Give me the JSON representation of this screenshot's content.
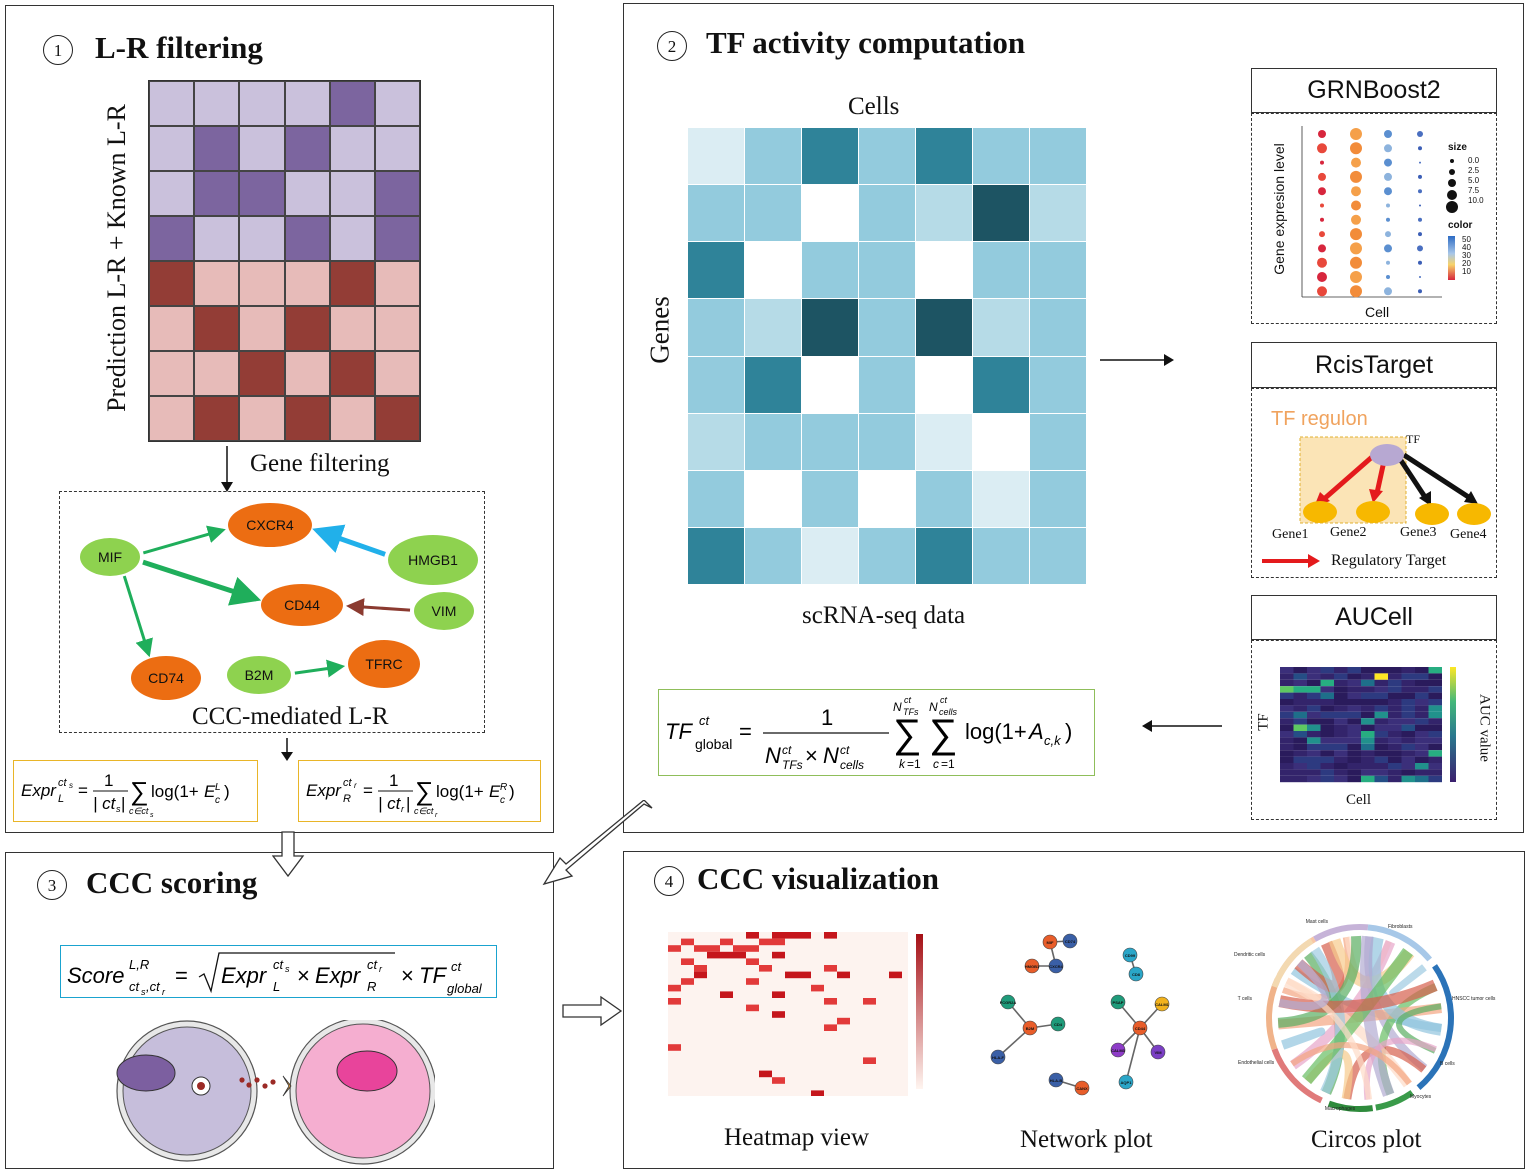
{
  "panel1": {
    "number": "1",
    "title": "L-R filtering",
    "ylabel": "Prediction L-R + Known L-R",
    "gene_filtering": "Gene filtering",
    "ccc_label": "CCC-mediated L-R",
    "heatmap": {
      "rows": 8,
      "cols": 6,
      "pattern": [
        [
          0,
          0,
          0,
          0,
          1,
          0
        ],
        [
          0,
          1,
          0,
          1,
          0,
          0
        ],
        [
          0,
          1,
          1,
          0,
          0,
          1
        ],
        [
          1,
          0,
          0,
          1,
          0,
          1
        ],
        [
          3,
          2,
          2,
          2,
          3,
          2
        ],
        [
          2,
          3,
          2,
          3,
          2,
          2
        ],
        [
          2,
          2,
          3,
          2,
          3,
          2
        ],
        [
          2,
          3,
          2,
          3,
          2,
          3
        ]
      ],
      "colors": [
        "#cac1dc",
        "#7c659f",
        "#e7bbb9",
        "#933d36"
      ]
    },
    "network": {
      "nodes": [
        {
          "id": "MIF",
          "label": "MIF",
          "type": "ligand"
        },
        {
          "id": "CXCR4",
          "label": "CXCR4",
          "type": "receptor"
        },
        {
          "id": "HMGB1",
          "label": "HMGB1",
          "type": "ligand"
        },
        {
          "id": "CD44",
          "label": "CD44",
          "type": "receptor"
        },
        {
          "id": "VIM",
          "label": "VIM",
          "type": "ligand"
        },
        {
          "id": "CD74",
          "label": "CD74",
          "type": "receptor"
        },
        {
          "id": "B2M",
          "label": "B2M",
          "type": "ligand"
        },
        {
          "id": "TFRC",
          "label": "TFRC",
          "type": "receptor"
        }
      ],
      "edges": [
        {
          "from": "MIF",
          "to": "CXCR4",
          "color": "#1fae5b"
        },
        {
          "from": "MIF",
          "to": "CD44",
          "color": "#1fae5b"
        },
        {
          "from": "MIF",
          "to": "CD74",
          "color": "#1fae5b"
        },
        {
          "from": "HMGB1",
          "to": "CXCR4",
          "color": "#21b0ea"
        },
        {
          "from": "VIM",
          "to": "CD44",
          "color": "#8b3a30"
        },
        {
          "from": "B2M",
          "to": "TFRC",
          "color": "#1fae5b"
        }
      ],
      "ligand_color": "#8ed24f",
      "receptor_color": "#ec6d12"
    }
  },
  "panel2": {
    "number": "2",
    "title": "TF activity computation",
    "cells_label": "Cells",
    "genes_label": "Genes",
    "caption": "scRNA-seq data",
    "heatmap": {
      "rows": 8,
      "cols": 7,
      "values": [
        [
          1,
          3,
          6,
          3,
          6,
          3,
          3
        ],
        [
          3,
          3,
          0,
          3,
          2,
          8,
          2
        ],
        [
          6,
          0,
          3,
          3,
          0,
          3,
          3
        ],
        [
          3,
          2,
          8,
          3,
          8,
          2,
          3
        ],
        [
          3,
          6,
          0,
          3,
          0,
          6,
          3
        ],
        [
          2,
          3,
          3,
          3,
          1,
          0,
          3
        ],
        [
          3,
          0,
          3,
          0,
          3,
          1,
          3
        ],
        [
          6,
          3,
          1,
          3,
          6,
          3,
          3
        ]
      ],
      "palette": {
        "0": "#ffffff",
        "1": "#dbedf3",
        "2": "#b6dbe7",
        "3": "#93cbdd",
        "6": "#2f8399",
        "8": "#1d5463"
      }
    },
    "grnboost": {
      "title": "GRNBoost2",
      "ylabel": "Gene expresion level",
      "xlabel": "Cell",
      "size_title": "size",
      "size_ticks": [
        "0.0",
        "2.5",
        "5.0",
        "7.5",
        "10.0"
      ],
      "color_title": "color",
      "color_ticks": [
        "50",
        "40",
        "30",
        "20",
        "10"
      ]
    },
    "rcistarget": {
      "title": "RcisTarget",
      "regulon": "TF regulon",
      "tf": "TF",
      "genes": [
        "Gene1",
        "Gene2",
        "Gene3",
        "Gene4"
      ],
      "legend": "Regulatory Target"
    },
    "aucell": {
      "title": "AUCell",
      "ylabel": "TF",
      "xlabel": "Cell",
      "legend": "AUC value"
    }
  },
  "panel3": {
    "number": "3",
    "title": "CCC scoring"
  },
  "panel4": {
    "number": "4",
    "title": "CCC visualization",
    "captions": [
      "Heatmap view",
      "Network plot",
      "Circos plot"
    ],
    "network_nodes": [
      "MIF",
      "CD74",
      "HMGB1",
      "CXCR4",
      "CD99",
      "CD8",
      "FCGR2A",
      "B2M",
      "CD4",
      "HLA-F",
      "PSAP",
      "CD44",
      "CALM1",
      "CALM3",
      "VIM",
      "AQP1",
      "HLA-B",
      "CANX"
    ],
    "circos_labels": [
      "Mast cells",
      "Fibroblasts",
      "Dendritic cells",
      "HNSCC tumor cells",
      "T cells",
      "Endothelial cells",
      "B cells",
      "Macrophages",
      "Myocytes"
    ]
  },
  "colors": {
    "formula_border": "#e9b528",
    "tf_formula_border": "#8fbe5a",
    "score_border": "#1aa3cf",
    "cell_left": "#c6bedb",
    "cell_right": "#f5aed0"
  }
}
